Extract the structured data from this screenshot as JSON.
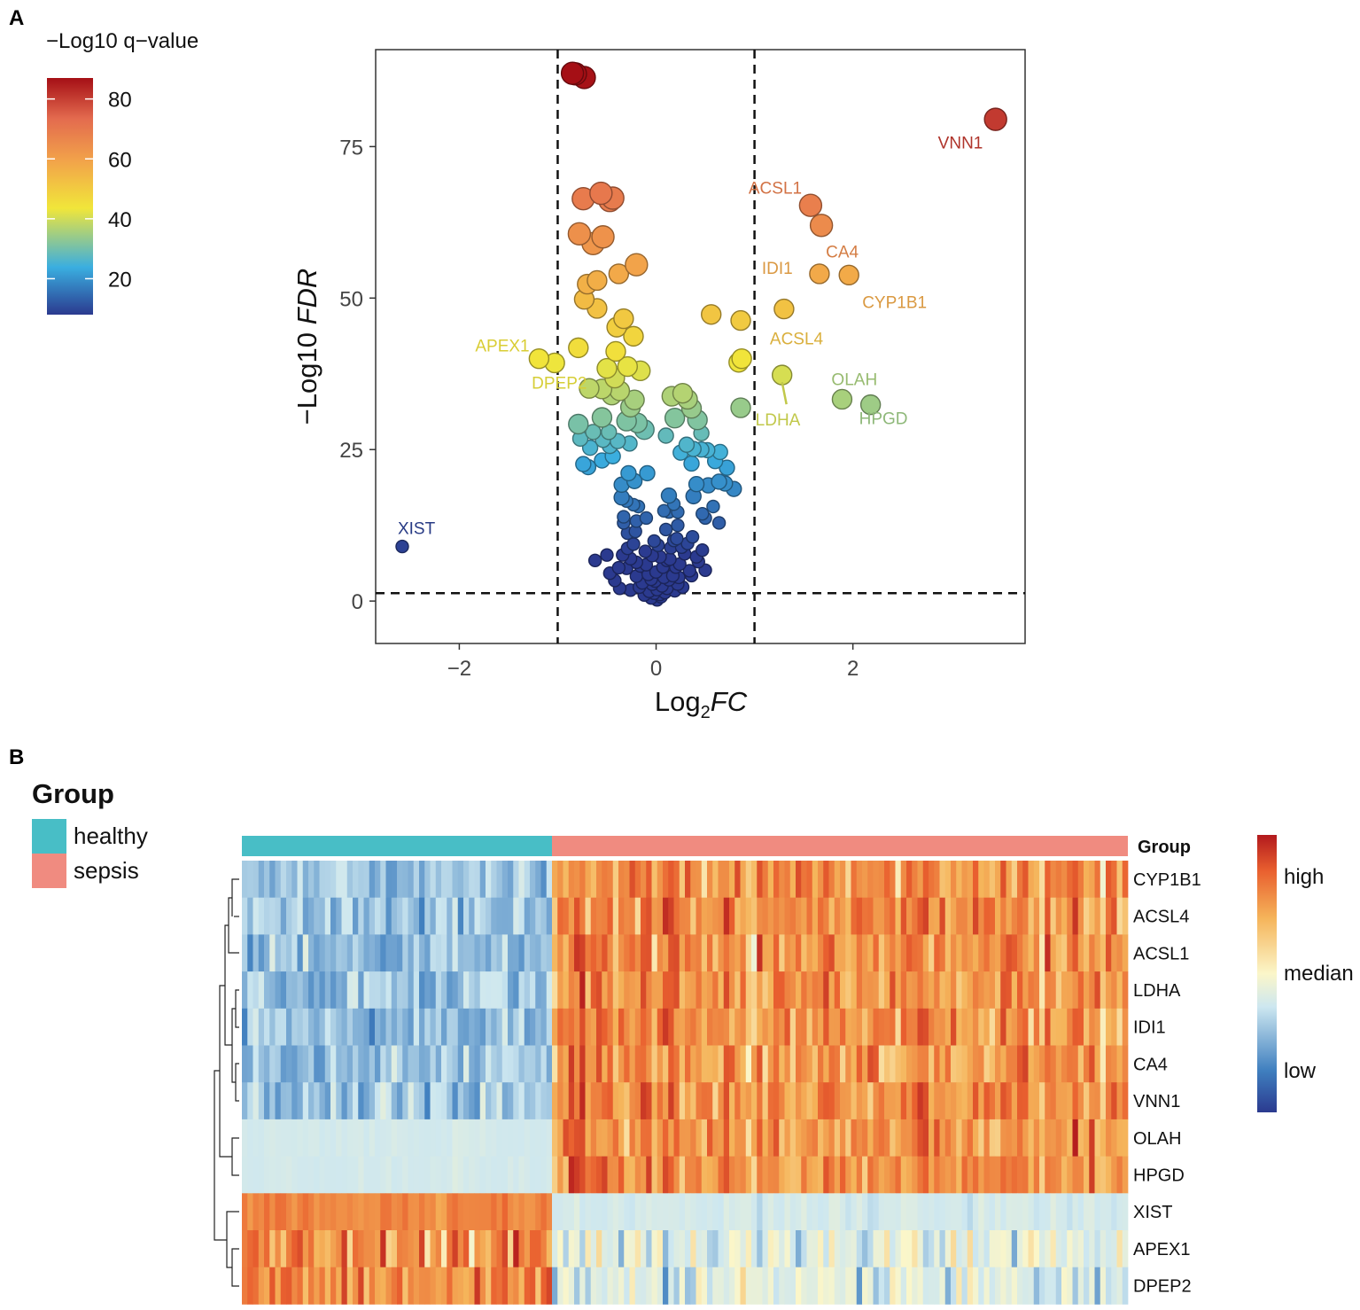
{
  "panel_labels": {
    "a": "A",
    "b": "B"
  },
  "chart_data": [
    {
      "type": "scatter",
      "title": "",
      "xlabel_main": "Log",
      "xlabel_sub": "2",
      "xlabel_italic": "FC",
      "ylabel_main": "−Log10 ",
      "ylabel_italic": "FDR",
      "xlim": [
        -2.85,
        3.75
      ],
      "ylim": [
        -7,
        91
      ],
      "xticks": [
        -2,
        0,
        2
      ],
      "xtick_labels": [
        "−2",
        "0",
        "2"
      ],
      "yticks": [
        0,
        25,
        50,
        75
      ],
      "ytick_labels": [
        "0",
        "25",
        "50",
        "75"
      ],
      "thresholds": {
        "x": [
          -1,
          1
        ],
        "y": 1.3
      },
      "color_legend": {
        "title": "−Log10 q−value",
        "range": [
          8,
          87
        ],
        "tick_values": [
          20,
          40,
          60,
          80
        ],
        "tick_labels": [
          "20",
          "40",
          "60",
          "80"
        ],
        "palette": [
          "#2b3a8f",
          "#3aaee0",
          "#f1e63a",
          "#f2a34a",
          "#e36a4e",
          "#a50f15"
        ]
      },
      "labeled_points": [
        {
          "gene": "VNN1",
          "x": 3.45,
          "y": 79.5
        },
        {
          "gene": "ACSL1",
          "x": 1.57,
          "y": 65.3
        },
        {
          "gene": "CA4",
          "x": 1.68,
          "y": 62.0
        },
        {
          "gene": "IDI1",
          "x": 1.66,
          "y": 54.0
        },
        {
          "gene": "CYP1B1",
          "x": 1.96,
          "y": 53.8
        },
        {
          "gene": "ACSL4",
          "x": 1.3,
          "y": 48.2
        },
        {
          "gene": "APEX1",
          "x": -1.19,
          "y": 40.0
        },
        {
          "gene": "DPEP2",
          "x": -1.03,
          "y": 39.3
        },
        {
          "gene": "LDHA",
          "x": 1.28,
          "y": 37.3
        },
        {
          "gene": "OLAH",
          "x": 1.89,
          "y": 33.3
        },
        {
          "gene": "HPGD",
          "x": 2.18,
          "y": 32.4
        },
        {
          "gene": "XIST",
          "x": -2.58,
          "y": 9.0
        }
      ],
      "points": [
        [
          -0.85,
          87.1
        ],
        [
          -0.82,
          87.0
        ],
        [
          -0.73,
          86.4
        ],
        [
          -0.74,
          66.4
        ],
        [
          -0.56,
          67.3
        ],
        [
          -0.44,
          66.5
        ],
        [
          -0.47,
          66.1
        ],
        [
          -0.78,
          60.6
        ],
        [
          -0.64,
          59.0
        ],
        [
          -0.54,
          60.1
        ],
        [
          -0.2,
          55.5
        ],
        [
          -0.6,
          52.9
        ],
        [
          -0.38,
          54.0
        ],
        [
          -0.7,
          52.3
        ],
        [
          -0.73,
          49.8
        ],
        [
          -0.6,
          48.3
        ],
        [
          -0.33,
          46.6
        ],
        [
          -0.4,
          45.2
        ],
        [
          -0.23,
          43.7
        ],
        [
          -0.79,
          41.8
        ],
        [
          -0.41,
          41.2
        ],
        [
          -0.29,
          38.7
        ],
        [
          -0.16,
          38.0
        ],
        [
          -0.79,
          29.2
        ],
        [
          -0.55,
          30.3
        ],
        [
          -0.45,
          34.0
        ],
        [
          -0.55,
          35.0
        ],
        [
          -0.68,
          35.1
        ],
        [
          -0.37,
          34.7
        ],
        [
          -0.26,
          32.0
        ],
        [
          -0.3,
          29.7
        ],
        [
          -0.48,
          27.9
        ],
        [
          -0.54,
          26.6
        ],
        [
          -0.67,
          25.3
        ],
        [
          -0.47,
          25.6
        ],
        [
          -0.39,
          26.4
        ],
        [
          -0.27,
          26.0
        ],
        [
          -0.55,
          23.2
        ],
        [
          -0.74,
          22.6
        ],
        [
          -0.69,
          22.1
        ],
        [
          -0.35,
          19.2
        ],
        [
          -0.22,
          19.8
        ],
        [
          -0.35,
          17.1
        ],
        [
          -0.3,
          16.5
        ],
        [
          -0.23,
          15.9
        ],
        [
          -0.33,
          13.9
        ],
        [
          -0.33,
          12.9
        ],
        [
          -0.2,
          13.2
        ],
        [
          -0.1,
          13.7
        ],
        [
          -0.29,
          11.2
        ],
        [
          -0.21,
          11.5
        ],
        [
          0.27,
          34.3
        ],
        [
          0.32,
          33.3
        ],
        [
          0.36,
          31.8
        ],
        [
          0.19,
          30.2
        ],
        [
          0.42,
          29.9
        ],
        [
          0.25,
          24.5
        ],
        [
          0.38,
          25.1
        ],
        [
          0.46,
          25.0
        ],
        [
          0.52,
          24.9
        ],
        [
          0.65,
          24.6
        ],
        [
          0.6,
          23.1
        ],
        [
          0.36,
          22.7
        ],
        [
          0.41,
          19.3
        ],
        [
          0.64,
          19.7
        ],
        [
          0.7,
          19.4
        ],
        [
          0.53,
          19.1
        ],
        [
          0.79,
          18.5
        ],
        [
          0.13,
          17.4
        ],
        [
          0.18,
          16.0
        ],
        [
          0.13,
          14.7
        ],
        [
          0.47,
          14.4
        ],
        [
          0.5,
          13.7
        ],
        [
          0.64,
          12.9
        ],
        [
          0.22,
          12.5
        ],
        [
          0.1,
          11.8
        ],
        [
          0.21,
          10.3
        ],
        [
          0.56,
          47.3
        ],
        [
          0.86,
          46.3
        ],
        [
          0.87,
          40.0
        ],
        [
          0.84,
          39.4
        ],
        [
          0.86,
          31.9
        ],
        [
          -0.77,
          26.8
        ],
        [
          -0.19,
          29.4
        ],
        [
          -0.28,
          21.1
        ],
        [
          -0.64,
          27.9
        ],
        [
          -0.18,
          15.6
        ],
        [
          0.08,
          14.9
        ],
        [
          0.31,
          25.8
        ],
        [
          0.38,
          17.3
        ],
        [
          0.58,
          15.6
        ],
        [
          0.46,
          27.7
        ],
        [
          0.72,
          22.0
        ],
        [
          0.1,
          27.3
        ],
        [
          -0.44,
          23.9
        ],
        [
          -0.12,
          28.3
        ],
        [
          -0.5,
          38.4
        ],
        [
          -0.42,
          36.8
        ],
        [
          -0.22,
          33.2
        ],
        [
          0.16,
          33.8
        ],
        [
          -0.09,
          21.1
        ],
        [
          0.22,
          14.7
        ],
        [
          -0.5,
          7.6
        ],
        [
          -0.62,
          6.7
        ],
        [
          -0.47,
          4.6
        ],
        [
          -0.38,
          5.5
        ],
        [
          -0.26,
          7.0
        ],
        [
          -0.3,
          5.4
        ],
        [
          -0.2,
          6.4
        ],
        [
          -0.14,
          3.0
        ],
        [
          -0.11,
          8.2
        ],
        [
          -0.16,
          5.8
        ],
        [
          -0.08,
          4.4
        ],
        [
          -0.04,
          2.8
        ],
        [
          0.01,
          1.9
        ],
        [
          0.04,
          1.1
        ],
        [
          0.09,
          1.4
        ],
        [
          -0.01,
          3.3
        ],
        [
          0.06,
          2.5
        ],
        [
          0.13,
          3.5
        ],
        [
          0.17,
          4.2
        ],
        [
          0.2,
          5.6
        ],
        [
          0.24,
          6.1
        ],
        [
          0.29,
          7.8
        ],
        [
          0.32,
          9.5
        ],
        [
          0.37,
          10.6
        ],
        [
          0.41,
          7.3
        ],
        [
          0.47,
          8.4
        ],
        [
          0.5,
          5.1
        ],
        [
          0.15,
          8.8
        ],
        [
          0.11,
          6.7
        ],
        [
          -0.23,
          9.4
        ],
        [
          0.18,
          10.0
        ],
        [
          0.26,
          8.9
        ],
        [
          0.34,
          5.0
        ],
        [
          0.07,
          5.6
        ],
        [
          -0.04,
          7.5
        ],
        [
          -0.34,
          7.6
        ],
        [
          -0.29,
          8.7
        ],
        [
          0.02,
          9.2
        ],
        [
          -0.07,
          1.6
        ],
        [
          0.11,
          2.1
        ],
        [
          0.22,
          2.8
        ],
        [
          -0.12,
          1.0
        ],
        [
          -0.05,
          0.5
        ],
        [
          0.01,
          0.2
        ],
        [
          0.05,
          0.7
        ],
        [
          -0.02,
          1.3
        ],
        [
          0.08,
          3.9
        ],
        [
          -0.1,
          6.0
        ],
        [
          0.14,
          6.9
        ],
        [
          -0.17,
          2.3
        ],
        [
          -0.05,
          3.6
        ],
        [
          0.0,
          4.8
        ],
        [
          0.19,
          1.7
        ],
        [
          -0.26,
          1.8
        ],
        [
          0.27,
          2.3
        ],
        [
          -0.42,
          3.4
        ],
        [
          0.43,
          6.5
        ],
        [
          0.36,
          4.2
        ],
        [
          -0.37,
          2.1
        ],
        [
          0.04,
          7.3
        ],
        [
          -0.02,
          9.9
        ],
        [
          -0.2,
          4.1
        ],
        [
          0.23,
          3.9
        ]
      ]
    },
    {
      "type": "heatmap",
      "annotation_title": "Group",
      "legend_title": "Group",
      "groups": [
        {
          "name": "healthy",
          "color": "#48bec6",
          "n": 56
        },
        {
          "name": "sepsis",
          "color": "#f08b80",
          "n": 104
        }
      ],
      "genes": [
        "CYP1B1",
        "ACSL4",
        "ACSL1",
        "LDHA",
        "IDI1",
        "CA4",
        "VNN1",
        "OLAH",
        "HPGD",
        "XIST",
        "APEX1",
        "DPEP2"
      ],
      "expression_legend": {
        "labels": [
          "high",
          "median",
          "low"
        ],
        "palette": [
          "#2b3a8f",
          "#3f7fbf",
          "#cde7f0",
          "#fbf6c9",
          "#f5b45a",
          "#e9602f",
          "#b2191d"
        ]
      }
    }
  ]
}
